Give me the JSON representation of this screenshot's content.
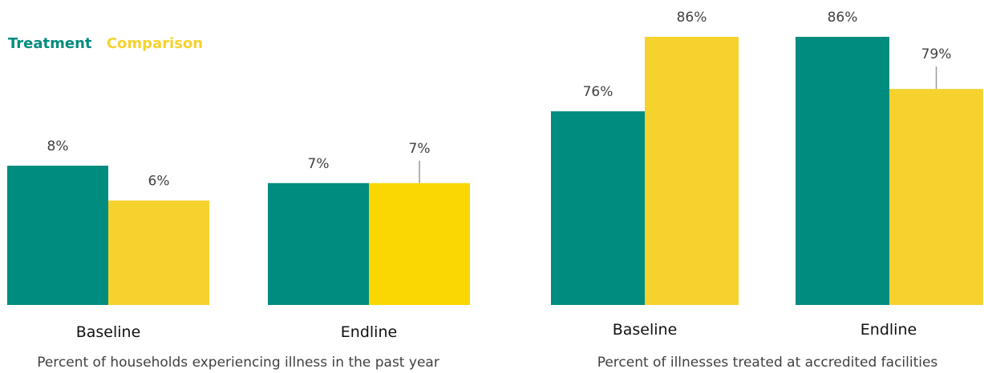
{
  "colors": {
    "treatment": "#008C7E",
    "comparison_baseline": "#F5D22D",
    "comparison_endline": "#FAD700",
    "error_bar": "#999999",
    "value_text": "#404040",
    "category_text": "#111111"
  },
  "legend": {
    "items": [
      {
        "label": "Treatment",
        "color": "#008C7E"
      },
      {
        "label": "Comparison",
        "color": "#F5D22D"
      }
    ]
  },
  "chart_data": [
    {
      "type": "bar",
      "title": "Percent of households experiencing illness in the past year",
      "categories": [
        "Baseline",
        "Endline"
      ],
      "series": [
        {
          "name": "Treatment",
          "values": [
            8,
            7
          ],
          "labels": [
            "8%",
            "7%"
          ]
        },
        {
          "name": "Comparison",
          "values": [
            6,
            7
          ],
          "labels": [
            "6%",
            "7%"
          ]
        }
      ],
      "error_bar_on": [
        [
          false,
          false
        ],
        [
          false,
          true
        ]
      ],
      "ylim": [
        0,
        16
      ],
      "grid": false,
      "legend": "top-left"
    },
    {
      "type": "bar",
      "title": "Percent of illnesses treated at accredited facilities",
      "categories": [
        "Baseline",
        "Endline"
      ],
      "series": [
        {
          "name": "Treatment",
          "values": [
            76,
            86
          ],
          "labels": [
            "76%",
            "86%"
          ]
        },
        {
          "name": "Comparison",
          "values": [
            86,
            79
          ],
          "labels": [
            "86%",
            "79%"
          ]
        }
      ],
      "error_bar_on": [
        [
          false,
          false
        ],
        [
          false,
          true
        ]
      ],
      "ylim": [
        50,
        86
      ],
      "grid": false,
      "legend": "none"
    }
  ]
}
